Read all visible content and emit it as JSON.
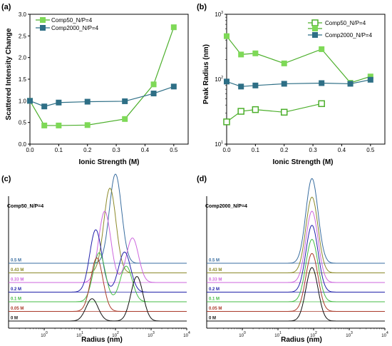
{
  "chart_data": [
    {
      "panel": "(a)",
      "type": "line",
      "xlabel": "Ionic Strength (M)",
      "ylabel": "Scattered Intensity Change",
      "xlim": [
        0.0,
        0.55
      ],
      "ylim": [
        0.0,
        3.0
      ],
      "xticks": [
        0.0,
        0.1,
        0.2,
        0.3,
        0.4,
        0.5
      ],
      "yticks": [
        0.0,
        0.5,
        1.0,
        1.5,
        2.0,
        2.5,
        3.0
      ],
      "xtick_labels": [
        "0.0",
        "0.1",
        "0.2",
        "0.3",
        "0.4",
        "0.5"
      ],
      "ytick_labels": [
        "0.0",
        "0.5",
        "1.0",
        "1.5",
        "2.0",
        "2.5",
        "3.0"
      ],
      "legend_position": "top-left",
      "series": [
        {
          "name": "Comp50_N/P=4",
          "color": "#4caf2b",
          "marker_color": "#7ed957",
          "x": [
            0.0,
            0.05,
            0.1,
            0.2,
            0.33,
            0.43,
            0.5
          ],
          "y": [
            1.0,
            0.43,
            0.43,
            0.44,
            0.58,
            1.38,
            2.7
          ]
        },
        {
          "name": "Comp2000_N/P=4",
          "color": "#2e6f86",
          "marker_color": "#2e6f86",
          "x": [
            0.0,
            0.05,
            0.1,
            0.2,
            0.33,
            0.43,
            0.5
          ],
          "y": [
            1.0,
            0.87,
            0.96,
            0.98,
            0.99,
            1.17,
            1.33
          ]
        }
      ]
    },
    {
      "panel": "(b)",
      "type": "line",
      "xlabel": "Ionic Strength (M)",
      "ylabel": "Peak Radius (nm)",
      "yscale": "log",
      "xlim": [
        0.0,
        0.55
      ],
      "ylim": [
        10,
        1000
      ],
      "xticks": [
        0.0,
        0.1,
        0.2,
        0.3,
        0.4,
        0.5
      ],
      "xtick_labels": [
        "0.0",
        "0.1",
        "0.2",
        "0.3",
        "0.4",
        "0.5"
      ],
      "ytick_labels": [
        "10",
        "10",
        "10"
      ],
      "ytick_exps": [
        "1",
        "2",
        "3"
      ],
      "legend_position": "top-right",
      "series": [
        {
          "name": "Comp50_N/P=4",
          "marker": "hollow-square",
          "color": "#4caf2b",
          "x": [
            0.0,
            0.05,
            0.1,
            0.2,
            0.33
          ],
          "y": [
            22,
            32,
            34,
            31,
            42
          ]
        },
        {
          "name": "",
          "marker": "filled-square",
          "color": "#4caf2b",
          "x": [
            0.0,
            0.05,
            0.1,
            0.2,
            0.33,
            0.43,
            0.5
          ],
          "y": [
            460,
            240,
            250,
            175,
            290,
            88,
            110
          ]
        },
        {
          "name": "Comp2000_N/P=4",
          "marker": "filled-square",
          "color": "#2e6f86",
          "x": [
            0.0,
            0.05,
            0.1,
            0.2,
            0.33,
            0.43,
            0.5
          ],
          "y": [
            92,
            77,
            80,
            85,
            87,
            85,
            98
          ]
        }
      ]
    },
    {
      "panel": "(c)",
      "type": "area",
      "title": "Comp50_N/P=4",
      "xlabel": "Radius (nm)",
      "xscale": "log",
      "xlim": [
        0.1,
        10000
      ],
      "xtick_labels": [
        "10",
        "10",
        "10",
        "10",
        "10"
      ],
      "xtick_exps": [
        "0",
        "1",
        "2",
        "3",
        "4"
      ],
      "offset_layers": [
        {
          "label": "0.5 M",
          "color": "#3a6ea0",
          "peaks": [
            [
              100,
              1.0
            ]
          ]
        },
        {
          "label": "0.43 M",
          "color": "#8c8a2a",
          "peaks": [
            [
              70,
              0.95
            ]
          ]
        },
        {
          "label": "0.33 M",
          "color": "#cc66dd",
          "peaks": [
            [
              50,
              0.8
            ],
            [
              300,
              0.5
            ]
          ]
        },
        {
          "label": "0.2 M",
          "color": "#2222aa",
          "peaks": [
            [
              28,
              0.7
            ],
            [
              180,
              0.45
            ]
          ]
        },
        {
          "label": "0.1 M",
          "color": "#44bb44",
          "peaks": [
            [
              35,
              0.55
            ],
            [
              200,
              0.4
            ]
          ]
        },
        {
          "label": "0.05 M",
          "color": "#aa3a2a",
          "peaks": [
            [
              30,
              0.6
            ]
          ]
        },
        {
          "label": "0 M",
          "color": "#111111",
          "peaks": [
            [
              22,
              0.25
            ],
            [
              400,
              0.5
            ]
          ]
        }
      ]
    },
    {
      "panel": "(d)",
      "type": "area",
      "title": "Comp2000_N/P=4",
      "xlabel": "Radius (nm)",
      "xscale": "log",
      "xlim": [
        0.1,
        10000
      ],
      "xtick_labels": [
        "10",
        "10",
        "10",
        "10",
        "10"
      ],
      "xtick_exps": [
        "0",
        "1",
        "2",
        "3",
        "4"
      ],
      "offset_layers": [
        {
          "label": "0.5 M",
          "color": "#3a6ea0",
          "peaks": [
            [
              90,
              0.95
            ]
          ]
        },
        {
          "label": "0.43 M",
          "color": "#8c8a2a",
          "peaks": [
            [
              90,
              0.85
            ]
          ]
        },
        {
          "label": "0.33 M",
          "color": "#cc66dd",
          "peaks": [
            [
              90,
              0.8
            ]
          ]
        },
        {
          "label": "0.2 M",
          "color": "#2222aa",
          "peaks": [
            [
              90,
              0.75
            ]
          ]
        },
        {
          "label": "0.1 M",
          "color": "#44bb44",
          "peaks": [
            [
              90,
              0.7
            ]
          ]
        },
        {
          "label": "0.05 M",
          "color": "#aa3a2a",
          "peaks": [
            [
              90,
              0.65
            ]
          ]
        },
        {
          "label": "0 M",
          "color": "#111111",
          "peaks": [
            [
              90,
              0.6
            ]
          ]
        }
      ]
    }
  ]
}
